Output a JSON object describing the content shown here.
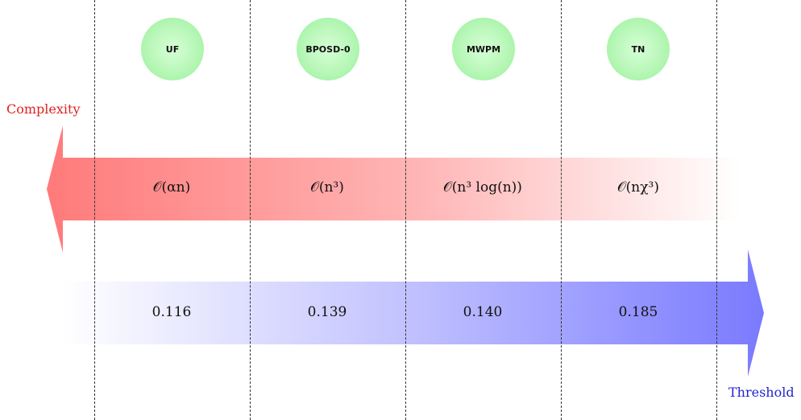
{
  "decoders": [
    {
      "name": "UF"
    },
    {
      "name": "BPOSD-0"
    },
    {
      "name": "MWPM"
    },
    {
      "name": "TN"
    }
  ],
  "complexity": {
    "label": "Complexity",
    "color": "#e02020",
    "values": [
      "𝒪(αn)",
      "𝒪(n³)",
      "𝒪(n³ log(n))",
      "𝒪(nχ³)"
    ]
  },
  "threshold": {
    "label": "Threshold",
    "color": "#2323cf",
    "values": [
      "0.116",
      "0.139",
      "0.140",
      "0.185"
    ]
  },
  "colors": {
    "red_arrow": "#ff7a7a",
    "blue_arrow": "#7a7aff",
    "node_fill": "#a8f5a8"
  }
}
